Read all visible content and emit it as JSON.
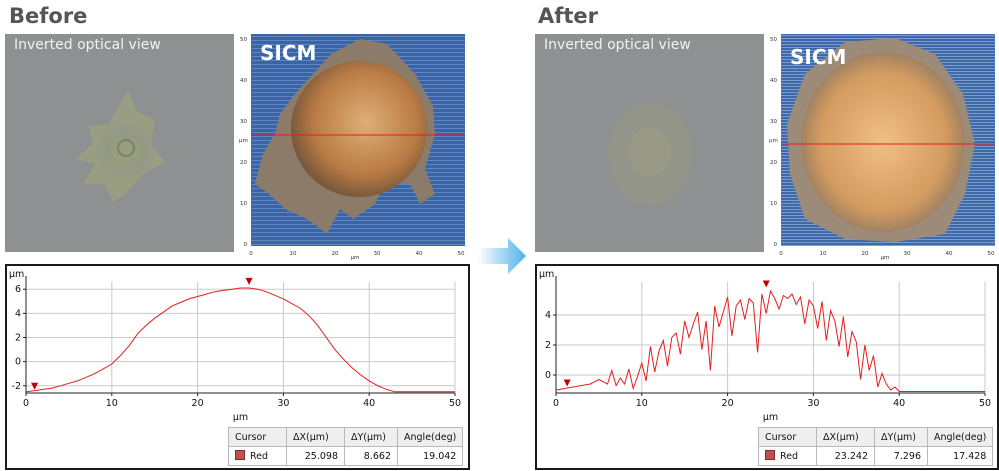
{
  "panels": {
    "before": {
      "title": "Before",
      "optical_label": "Inverted optical view",
      "sicm_label": "SICM",
      "image_axis_unit": "µm",
      "image_x_ticks": [
        "0",
        "10",
        "20",
        "30",
        "40",
        "50"
      ],
      "image_y_ticks": [
        "0",
        "10",
        "20",
        "30",
        "40",
        "50"
      ],
      "cursor": {
        "headers": [
          "Cursor",
          "ΔX(µm)",
          "ΔY(µm)",
          "Angle(deg)"
        ],
        "row": {
          "name": "Red",
          "dx": "25.098",
          "dy": "8.662",
          "angle": "19.042"
        }
      }
    },
    "after": {
      "title": "After",
      "optical_label": "Inverted optical view",
      "sicm_label": "SICM",
      "image_axis_unit": "µm",
      "image_x_ticks": [
        "0",
        "10",
        "20",
        "30",
        "40",
        "50"
      ],
      "image_y_ticks": [
        "0",
        "10",
        "20",
        "30",
        "40",
        "50"
      ],
      "cursor": {
        "headers": [
          "Cursor",
          "ΔX(µm)",
          "ΔY(µm)",
          "Angle(deg)"
        ],
        "row": {
          "name": "Red",
          "dx": "23.242",
          "dy": "7.296",
          "angle": "17.428"
        }
      }
    }
  },
  "colors": {
    "profile": "#e41e1e",
    "marker": "#c00000",
    "cell_brown": "#c98a4e",
    "sicm_bg": "#3a64a3",
    "arrow": "#5ab4ea"
  },
  "chart_data": [
    {
      "type": "line",
      "panel": "before",
      "xlabel": "µm",
      "ylabel": "µm",
      "xlim": [
        0,
        50
      ],
      "ylim": [
        -2.6,
        6.6
      ],
      "xticks": [
        0,
        10,
        20,
        30,
        40,
        50
      ],
      "yticks": [
        -2,
        0,
        2,
        4,
        6
      ],
      "grid": true,
      "cursor_markers": [
        {
          "x": 1,
          "y": -2.5
        },
        {
          "x": 26,
          "y": 6.2
        }
      ],
      "series": [
        {
          "x": [
            0,
            1,
            2,
            3,
            4,
            5,
            6,
            7,
            8,
            9,
            10,
            11,
            12,
            13,
            14,
            15,
            16,
            17,
            18,
            19,
            20,
            21,
            22,
            23,
            24,
            25,
            26,
            27,
            28,
            29,
            30,
            31,
            32,
            33,
            34,
            35,
            36,
            37,
            38,
            39,
            40,
            41,
            42,
            43,
            44,
            45,
            46,
            47,
            48,
            49,
            50
          ],
          "y": [
            -2.5,
            -2.4,
            -2.3,
            -2.2,
            -2.0,
            -1.8,
            -1.6,
            -1.3,
            -1.0,
            -0.6,
            -0.2,
            0.5,
            1.3,
            2.3,
            3.0,
            3.6,
            4.1,
            4.6,
            4.9,
            5.2,
            5.4,
            5.6,
            5.8,
            5.9,
            6.0,
            6.1,
            6.1,
            6.0,
            5.8,
            5.5,
            5.2,
            4.8,
            4.4,
            3.8,
            3.0,
            2.0,
            1.0,
            0.2,
            -0.5,
            -1.1,
            -1.6,
            -2.0,
            -2.3,
            -2.5,
            -2.5,
            -2.5,
            -2.5,
            -2.5,
            -2.5,
            -2.5,
            -2.5
          ]
        }
      ]
    },
    {
      "type": "line",
      "panel": "after",
      "xlabel": "µm",
      "ylabel": "µm",
      "xlim": [
        0,
        50
      ],
      "ylim": [
        -1.2,
        6.2
      ],
      "xticks": [
        0,
        10,
        20,
        30,
        40,
        50
      ],
      "yticks": [
        0,
        2,
        4
      ],
      "grid": true,
      "cursor_markers": [
        {
          "x": 1.3,
          "y": -0.9
        },
        {
          "x": 24.5,
          "y": 5.7
        }
      ],
      "series": [
        {
          "x": [
            0,
            1,
            2,
            3,
            4,
            5,
            6,
            6.5,
            7,
            7.5,
            8,
            8.5,
            9,
            9.5,
            10,
            10.5,
            11,
            11.5,
            12,
            12.5,
            13,
            13.5,
            14,
            14.5,
            15,
            15.5,
            16,
            16.5,
            17,
            17.5,
            18,
            18.5,
            19,
            19.5,
            20,
            20.5,
            21,
            21.5,
            22,
            22.5,
            23,
            23.5,
            24,
            24.5,
            25,
            25.5,
            26,
            26.5,
            27,
            27.5,
            28,
            28.5,
            29,
            29.5,
            30,
            30.5,
            31,
            31.5,
            32,
            32.5,
            33,
            33.5,
            34,
            34.5,
            35,
            35.5,
            36,
            36.5,
            37,
            37.5,
            38,
            38.5,
            39,
            39.5,
            40,
            41,
            42,
            43,
            44,
            45,
            46,
            47,
            48,
            49,
            50
          ],
          "y": [
            -1.0,
            -0.9,
            -0.8,
            -0.7,
            -0.6,
            -0.3,
            -0.6,
            0.3,
            -0.7,
            -0.2,
            -0.6,
            0.4,
            -0.9,
            -0.1,
            0.8,
            -0.4,
            1.9,
            0.2,
            1.6,
            2.3,
            0.6,
            2.5,
            2.8,
            1.4,
            3.6,
            2.5,
            3.4,
            4.2,
            1.7,
            3.6,
            0.3,
            4.6,
            3.2,
            4.2,
            5.2,
            2.6,
            4.6,
            5.0,
            3.7,
            5.1,
            4.8,
            1.5,
            5.4,
            4.1,
            5.6,
            5.1,
            4.4,
            5.3,
            5.1,
            5.4,
            4.7,
            5.2,
            3.4,
            5.0,
            4.6,
            3.1,
            4.9,
            2.3,
            4.3,
            3.6,
            1.9,
            3.9,
            1.2,
            2.9,
            2.2,
            -0.3,
            2.0,
            0.3,
            1.3,
            -0.8,
            0.1,
            -0.6,
            -1.0,
            -0.8,
            -1.1,
            -1.1,
            -1.1,
            -1.1,
            -1.1,
            -1.1,
            -1.1,
            -1.1,
            -1.1,
            -1.1,
            -1.1
          ]
        }
      ]
    }
  ]
}
